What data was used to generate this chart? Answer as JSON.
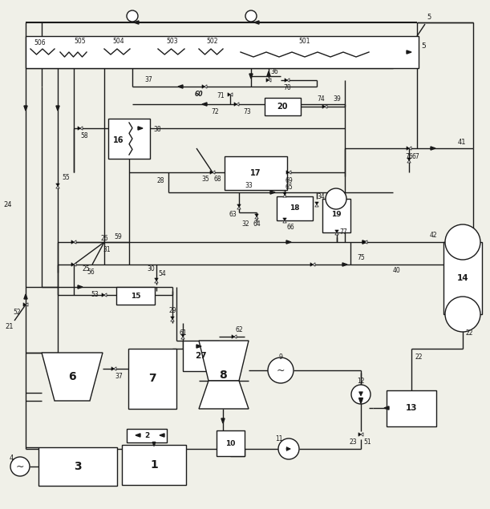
{
  "bg": "#f0f0e8",
  "lc": "#1a1a1a",
  "fig_w": 6.11,
  "fig_h": 6.35,
  "dpi": 100
}
